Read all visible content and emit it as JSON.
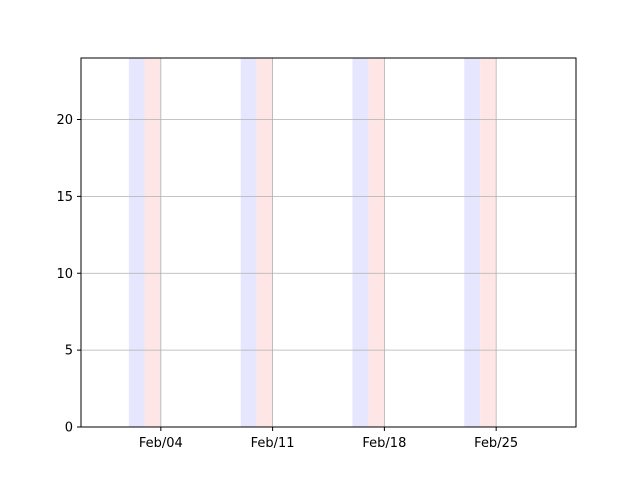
{
  "chart_data": {
    "type": "bar",
    "title": "",
    "xlabel": "",
    "ylabel": "",
    "x_tick_labels": [
      "Feb/04",
      "Feb/11",
      "Feb/18",
      "Feb/25"
    ],
    "x_tick_dates": [
      "2024-02-04",
      "2024-02-11",
      "2024-02-18",
      "2024-02-25"
    ],
    "xlim": [
      "2024-01-30",
      "2024-03-01"
    ],
    "ylim": [
      0,
      24
    ],
    "y_ticks": [
      0,
      5,
      10,
      15,
      20
    ],
    "grid": {
      "y": true,
      "x": false
    },
    "shaded_bands": [
      {
        "start": "2024-02-02",
        "end": "2024-02-03",
        "color": "#e6e6ff"
      },
      {
        "start": "2024-02-03",
        "end": "2024-02-04",
        "color": "#ffe6e6"
      },
      {
        "start": "2024-02-09",
        "end": "2024-02-10",
        "color": "#e6e6ff"
      },
      {
        "start": "2024-02-10",
        "end": "2024-02-11",
        "color": "#ffe6e6"
      },
      {
        "start": "2024-02-16",
        "end": "2024-02-17",
        "color": "#e6e6ff"
      },
      {
        "start": "2024-02-17",
        "end": "2024-02-18",
        "color": "#ffe6e6"
      },
      {
        "start": "2024-02-23",
        "end": "2024-02-24",
        "color": "#e6e6ff"
      },
      {
        "start": "2024-02-24",
        "end": "2024-02-25",
        "color": "#ffe6e6"
      }
    ],
    "colors": {
      "grid": "#b0b0b0",
      "axes": "#000000"
    }
  }
}
